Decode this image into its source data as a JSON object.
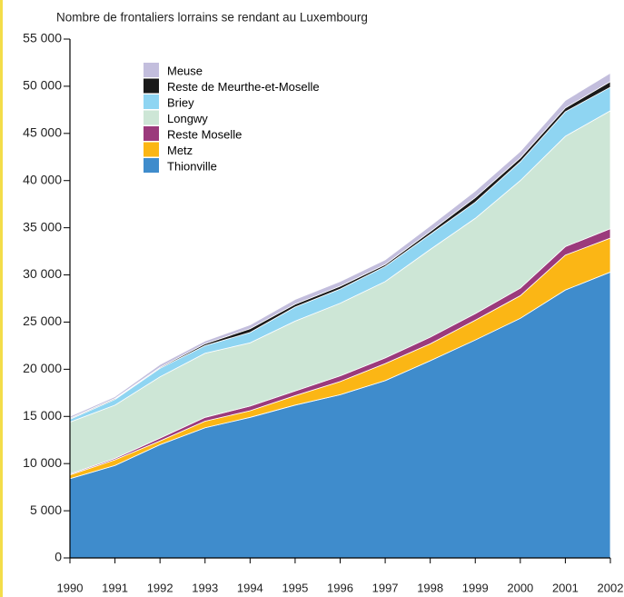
{
  "chart_data": {
    "type": "area",
    "stacked": true,
    "title": "Nombre de frontaliers lorrains se rendant au Luxembourg",
    "x": [
      1990,
      1991,
      1992,
      1993,
      1994,
      1995,
      1996,
      1997,
      1998,
      1999,
      2000,
      2001,
      2002
    ],
    "xlim": [
      1990,
      2002
    ],
    "ylim": [
      0,
      55000
    ],
    "yticks": [
      0,
      {
        "value": 5000,
        "label": "5 000"
      },
      {
        "value": 10000,
        "label": "10 000"
      },
      {
        "value": 15000,
        "label": "15 000"
      },
      {
        "value": 20000,
        "label": "20 000"
      },
      {
        "value": 25000,
        "label": "25 000"
      },
      {
        "value": 30000,
        "label": "30 000"
      },
      {
        "value": 35000,
        "label": "35 000"
      },
      {
        "value": 40000,
        "label": "40 000"
      },
      {
        "value": 45000,
        "label": "45 000"
      },
      {
        "value": 50000,
        "label": "50 000"
      },
      {
        "value": 55000,
        "label": "55 000"
      }
    ],
    "series": [
      {
        "name": "Thionville",
        "color": "#3f8ccc",
        "values": [
          8400,
          9800,
          12000,
          13800,
          14900,
          16200,
          17300,
          18800,
          20900,
          23100,
          25400,
          28400,
          30300
        ]
      },
      {
        "name": "Metz",
        "color": "#fbb615",
        "values": [
          400,
          600,
          400,
          700,
          700,
          1000,
          1400,
          1800,
          1800,
          2100,
          2400,
          3700,
          3600
        ]
      },
      {
        "name": "Reste Moselle",
        "color": "#9b3a7c",
        "values": [
          100,
          150,
          300,
          400,
          500,
          500,
          600,
          600,
          700,
          700,
          800,
          900,
          1000
        ]
      },
      {
        "name": "Longwy",
        "color": "#cde6d6",
        "values": [
          5500,
          5650,
          6500,
          6800,
          6700,
          7400,
          7700,
          8100,
          9300,
          10100,
          11400,
          11700,
          12500
        ]
      },
      {
        "name": "Briey",
        "color": "#8fd5f2",
        "values": [
          300,
          600,
          900,
          800,
          1100,
          1500,
          1500,
          1600,
          1600,
          1700,
          2000,
          2600,
          2500
        ]
      },
      {
        "name": "Reste de Meurthe-et-Moselle",
        "color": "#1a1a1a",
        "values": [
          100,
          100,
          100,
          200,
          400,
          300,
          300,
          200,
          300,
          500,
          400,
          400,
          600
        ]
      },
      {
        "name": "Meuse",
        "color": "#c3bedd",
        "values": [
          200,
          200,
          300,
          300,
          400,
          500,
          500,
          500,
          600,
          700,
          700,
          800,
          900
        ]
      }
    ]
  }
}
